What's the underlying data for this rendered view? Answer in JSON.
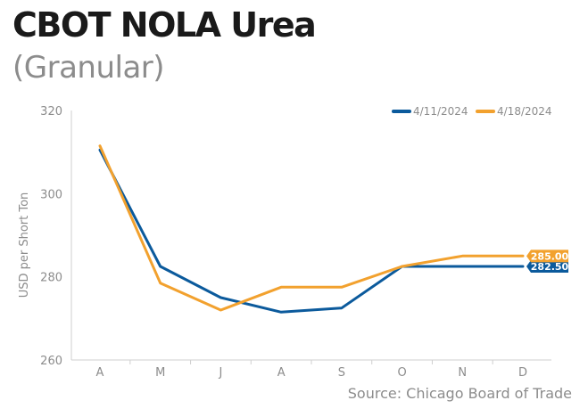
{
  "title": "CBOT NOLA Urea",
  "subtitle": "(Granular)",
  "source": "Source: Chicago Board of Trade",
  "chart_data": {
    "type": "line",
    "title": "CBOT NOLA Urea",
    "subtitle": "(Granular)",
    "xlabel": "",
    "ylabel": "USD per Short Ton",
    "categories": [
      "A",
      "M",
      "J",
      "A",
      "S",
      "O",
      "N",
      "D"
    ],
    "ylim": [
      260,
      320
    ],
    "yticks": [
      260,
      280,
      300,
      320
    ],
    "grid": false,
    "legend_position": "top-right",
    "series": [
      {
        "name": "4/11/2024",
        "color": "#0b5a9c",
        "values": [
          310.5,
          282.5,
          275,
          271.5,
          272.5,
          282.5,
          282.5,
          282.5
        ],
        "end_label": "282.50"
      },
      {
        "name": "4/18/2024",
        "color": "#f2a12e",
        "values": [
          311.5,
          278.5,
          272,
          277.5,
          277.5,
          282.5,
          285,
          285
        ],
        "end_label": "285.00"
      }
    ]
  }
}
